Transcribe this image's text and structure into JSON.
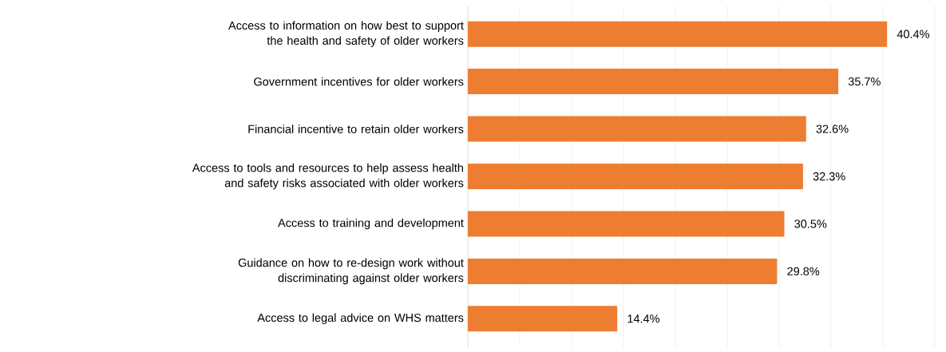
{
  "chart_data": {
    "type": "bar",
    "orientation": "horizontal",
    "categories": [
      "Access to information on how best to support the health and safety of older workers",
      "Government incentives for older workers",
      "Financial incentive to retain older workers",
      "Access to tools and resources to help assess health and safety risks associated with older workers",
      "Access to training and development",
      "Guidance on how to re-design work without discriminating against older workers",
      "Access to legal advice on WHS matters"
    ],
    "values": [
      40.4,
      35.7,
      32.6,
      32.3,
      30.5,
      29.8,
      14.4
    ],
    "value_labels": [
      "40.4%",
      "35.7%",
      "32.6%",
      "32.3%",
      "30.5%",
      "29.8%",
      "14.4%"
    ],
    "color": "#ed7d31",
    "xlim": [
      0,
      45
    ],
    "xticks": [
      {
        "value": 0,
        "label": null
      },
      {
        "value": 5,
        "label": null
      },
      {
        "value": 10,
        "label": null
      },
      {
        "value": 15,
        "label": null
      },
      {
        "value": 20,
        "label": null
      },
      {
        "value": 25,
        "label": null
      },
      {
        "value": 30,
        "label": null
      },
      {
        "value": 35,
        "label": null
      },
      {
        "value": 40,
        "label": null
      },
      {
        "value": 45,
        "label": null
      }
    ],
    "grid": "x",
    "tick_labels": "y"
  }
}
